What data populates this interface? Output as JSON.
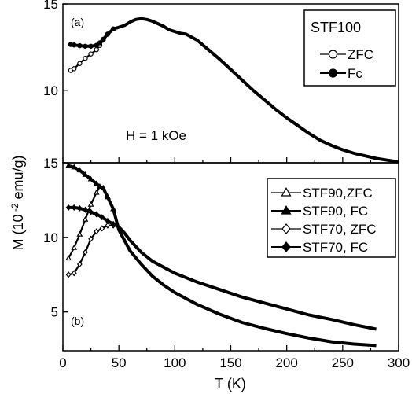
{
  "chart_data": [
    {
      "type": "line",
      "panel_label": "(a)",
      "legend_title": "STF100",
      "annotation": "H = 1 kOe",
      "xlim": [
        0,
        300
      ],
      "ylim": [
        5.8,
        15
      ],
      "yticks": [
        "15",
        "10"
      ],
      "series": [
        {
          "name": "ZFC",
          "marker": "open-circle",
          "x": [
            7,
            10,
            15,
            20,
            25,
            30,
            33,
            36,
            40,
            45,
            50,
            55,
            60,
            65,
            70,
            75,
            80,
            85,
            90,
            95,
            100,
            105,
            110,
            120,
            130,
            140,
            150,
            160,
            170,
            180,
            190,
            200,
            210,
            220,
            230,
            240,
            250,
            260,
            270,
            280,
            290,
            300
          ],
          "y": [
            11.15,
            11.25,
            11.55,
            11.85,
            12.1,
            12.35,
            12.6,
            12.9,
            13.25,
            13.55,
            13.65,
            13.75,
            13.95,
            14.1,
            14.15,
            14.1,
            14.0,
            13.85,
            13.7,
            13.5,
            13.4,
            13.3,
            13.25,
            12.9,
            12.35,
            11.8,
            11.2,
            10.6,
            10.0,
            9.45,
            8.9,
            8.4,
            7.95,
            7.5,
            7.1,
            6.8,
            6.55,
            6.35,
            6.2,
            6.05,
            5.95,
            5.85
          ]
        },
        {
          "name": "Fc",
          "marker": "filled-circle",
          "x": [
            7,
            10,
            15,
            20,
            25,
            30,
            33,
            36,
            40,
            45,
            50,
            55,
            60,
            65,
            70,
            75,
            80,
            85,
            90,
            95,
            100,
            105,
            110,
            120,
            130,
            140,
            150,
            160,
            170,
            180,
            190,
            200,
            210,
            220,
            230,
            240,
            250,
            260,
            270,
            280,
            290,
            300
          ],
          "y": [
            12.65,
            12.62,
            12.58,
            12.55,
            12.55,
            12.6,
            12.75,
            12.95,
            13.25,
            13.55,
            13.65,
            13.75,
            13.95,
            14.1,
            14.15,
            14.1,
            14.0,
            13.85,
            13.7,
            13.5,
            13.4,
            13.3,
            13.25,
            12.9,
            12.35,
            11.8,
            11.2,
            10.6,
            10.0,
            9.45,
            8.9,
            8.4,
            7.95,
            7.5,
            7.1,
            6.8,
            6.55,
            6.35,
            6.2,
            6.05,
            5.95,
            5.85
          ]
        }
      ]
    },
    {
      "type": "line",
      "panel_label": "(b)",
      "xlabel": "T (K)",
      "xlim": [
        0,
        300
      ],
      "ylim": [
        2.4,
        15
      ],
      "xticks": [
        "0",
        "50",
        "100",
        "150",
        "200",
        "250",
        "300"
      ],
      "yticks": [
        "15",
        "10",
        "5"
      ],
      "series": [
        {
          "name": "STF90,ZFC",
          "marker": "open-triangle",
          "x": [
            5,
            10,
            15,
            20,
            25,
            30,
            33,
            36,
            40,
            45,
            50,
            60,
            70,
            80,
            90,
            100,
            120,
            140,
            160,
            180,
            200,
            220,
            240,
            260,
            280
          ],
          "y": [
            8.6,
            9.3,
            10.2,
            11.2,
            12.2,
            13.0,
            13.4,
            13.3,
            12.7,
            11.9,
            10.5,
            9.1,
            8.2,
            7.4,
            6.8,
            6.3,
            5.5,
            4.85,
            4.3,
            3.9,
            3.55,
            3.25,
            3.0,
            2.85,
            2.75
          ]
        },
        {
          "name": "STF90, FC",
          "marker": "filled-triangle",
          "x": [
            5,
            10,
            15,
            20,
            25,
            30,
            33,
            36,
            40,
            45,
            50,
            60,
            70,
            80,
            90,
            100,
            120,
            140,
            160,
            180,
            200,
            220,
            240,
            260,
            280
          ],
          "y": [
            14.8,
            14.7,
            14.5,
            14.2,
            13.9,
            13.6,
            13.4,
            13.3,
            12.7,
            11.9,
            10.5,
            9.1,
            8.2,
            7.4,
            6.8,
            6.3,
            5.5,
            4.85,
            4.3,
            3.9,
            3.55,
            3.25,
            3.0,
            2.85,
            2.75
          ]
        },
        {
          "name": "STF70, ZFC",
          "marker": "open-diamond",
          "x": [
            5,
            10,
            15,
            20,
            25,
            30,
            35,
            40,
            45,
            50,
            55,
            60,
            70,
            80,
            90,
            100,
            120,
            140,
            160,
            180,
            200,
            220,
            240,
            260,
            280
          ],
          "y": [
            7.5,
            7.6,
            8.2,
            9.0,
            9.9,
            10.4,
            10.6,
            10.8,
            10.8,
            10.7,
            10.3,
            9.8,
            9.0,
            8.4,
            8.0,
            7.6,
            7.0,
            6.5,
            6.0,
            5.6,
            5.2,
            4.8,
            4.5,
            4.15,
            3.85
          ]
        },
        {
          "name": "STF70,  FC",
          "marker": "filled-diamond",
          "x": [
            5,
            10,
            15,
            20,
            25,
            30,
            35,
            40,
            45,
            50,
            55,
            60,
            70,
            80,
            90,
            100,
            120,
            140,
            160,
            180,
            200,
            220,
            240,
            260,
            280
          ],
          "y": [
            12.0,
            12.0,
            11.95,
            11.85,
            11.7,
            11.55,
            11.35,
            11.1,
            10.9,
            10.7,
            10.3,
            9.8,
            9.0,
            8.4,
            8.0,
            7.6,
            7.0,
            6.5,
            6.0,
            5.6,
            5.2,
            4.8,
            4.5,
            4.15,
            3.85
          ]
        }
      ]
    }
  ],
  "ylabel_prefix": "M (10",
  "ylabel_exponent": " -2",
  "ylabel_suffix": " emu/g)"
}
